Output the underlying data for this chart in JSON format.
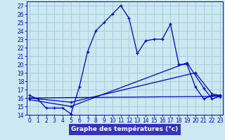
{
  "bg_color": "#cce8f0",
  "grid_color": "#aaccdd",
  "line_color": "#0000bb",
  "line1_x": [
    0,
    1,
    2,
    3,
    4,
    5,
    6,
    7,
    8,
    9,
    10,
    11,
    12,
    13,
    14,
    15,
    16,
    17,
    18,
    19,
    20,
    21,
    22,
    23
  ],
  "line1_y": [
    16.3,
    15.9,
    14.8,
    14.8,
    14.8,
    14.1,
    17.3,
    21.5,
    24.0,
    25.0,
    26.0,
    27.0,
    25.5,
    21.3,
    22.8,
    23.0,
    23.0,
    24.8,
    20.0,
    20.0,
    17.3,
    15.9,
    16.3,
    16.3
  ],
  "line2_x": [
    0,
    23
  ],
  "line2_y": [
    16.0,
    16.2
  ],
  "line3_x": [
    0,
    5,
    20,
    22,
    23
  ],
  "line3_y": [
    16.0,
    15.5,
    19.0,
    16.5,
    16.3
  ],
  "line4_x": [
    0,
    5,
    19,
    21,
    22,
    23
  ],
  "line4_y": [
    15.8,
    15.0,
    20.2,
    17.2,
    15.9,
    16.2
  ],
  "ylim": [
    14,
    27.5
  ],
  "xlim": [
    -0.3,
    23.3
  ],
  "yticks": [
    14,
    15,
    16,
    17,
    18,
    19,
    20,
    21,
    22,
    23,
    24,
    25,
    26,
    27
  ],
  "xticks": [
    0,
    1,
    2,
    3,
    4,
    5,
    6,
    7,
    8,
    9,
    10,
    11,
    12,
    13,
    14,
    15,
    16,
    17,
    18,
    19,
    20,
    21,
    22,
    23
  ],
  "xlabel": "Graphe des températures (°c)",
  "xlabel_color": "#ffffff",
  "xlabel_bg": "#3333bb",
  "tick_fontsize": 5.5,
  "marker": "+"
}
